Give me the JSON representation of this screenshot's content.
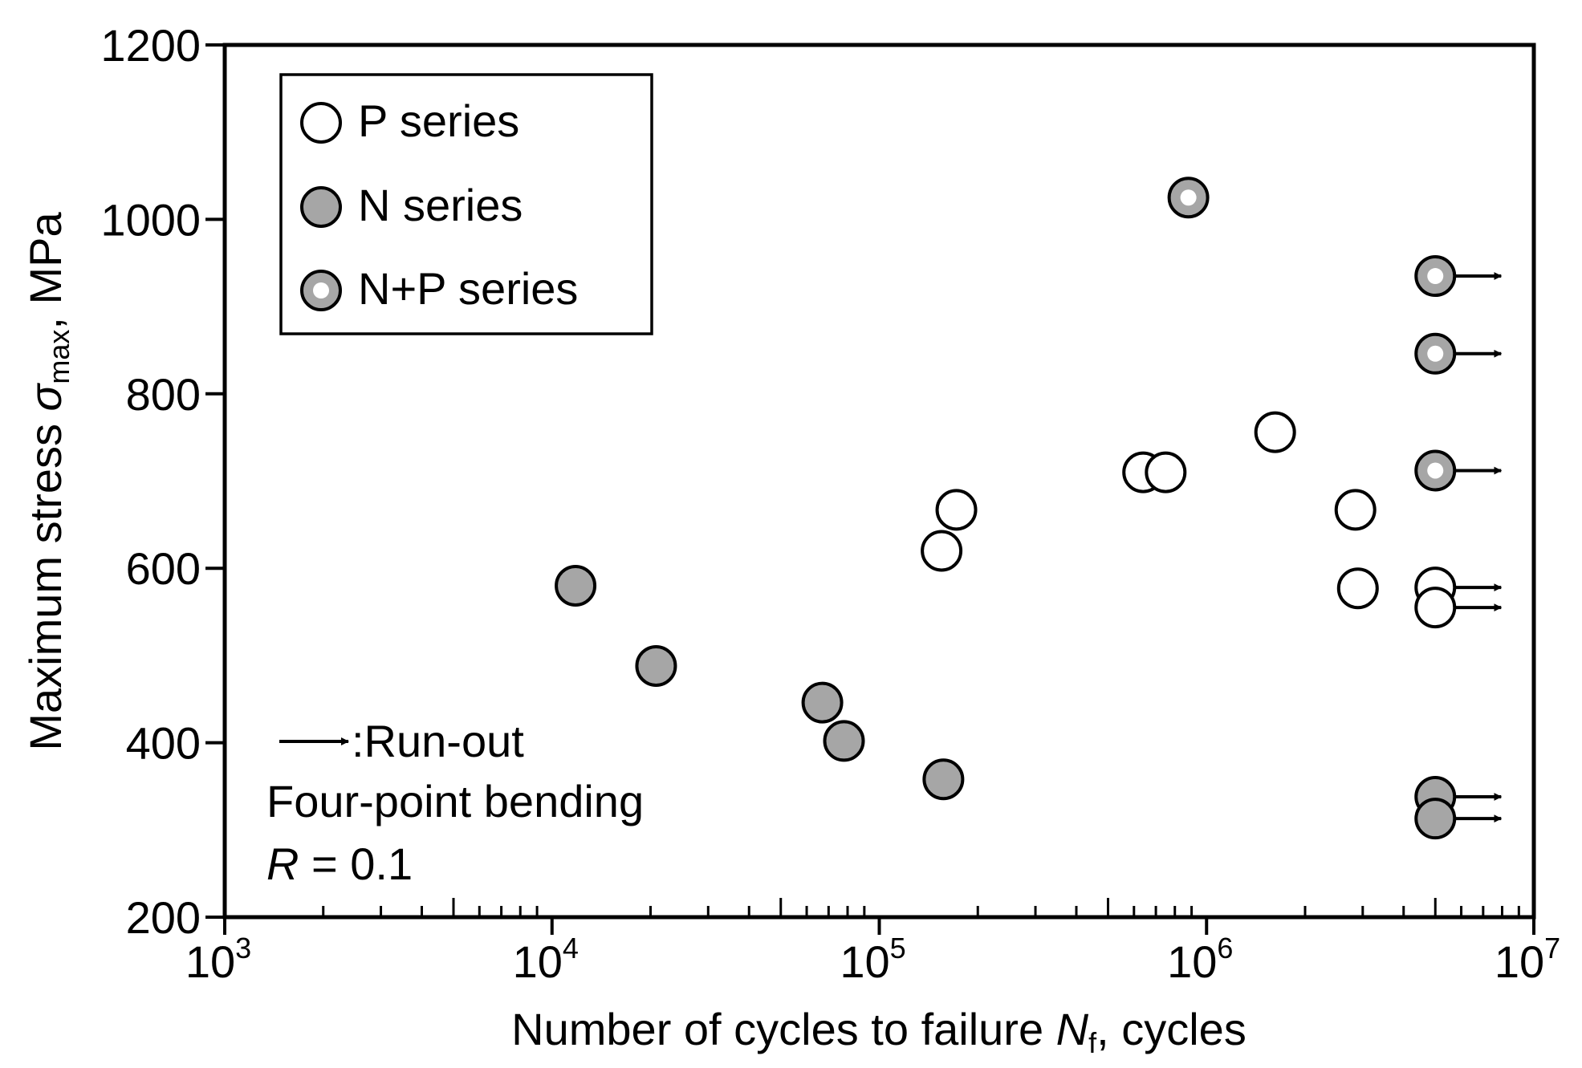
{
  "chart_data": {
    "type": "scatter",
    "xscale": "log",
    "xlim": [
      1000,
      10000000
    ],
    "ylim": [
      200,
      1200
    ],
    "xlabel": "Number of cycles to failure N_f, cycles",
    "xlabel_parts": {
      "pre": "Number of cycles to failure ",
      "var": "N",
      "sub": "f",
      "post": ", cycles"
    },
    "ylabel": "Maximum stress σ_max, MPa",
    "ylabel_parts": {
      "pre": "Maximum stress ",
      "var": "σ",
      "sub": "max",
      "post": ", MPa"
    },
    "x_ticks": [
      {
        "value": 1000,
        "base": "10",
        "exp": "3"
      },
      {
        "value": 10000,
        "base": "10",
        "exp": "4"
      },
      {
        "value": 100000,
        "base": "10",
        "exp": "5"
      },
      {
        "value": 1000000,
        "base": "10",
        "exp": "6"
      },
      {
        "value": 10000000,
        "base": "10",
        "exp": "7"
      }
    ],
    "y_ticks": [
      {
        "value": 200,
        "label": "200"
      },
      {
        "value": 400,
        "label": "400"
      },
      {
        "value": 600,
        "label": "600"
      },
      {
        "value": 800,
        "label": "800"
      },
      {
        "value": 1000,
        "label": "1000"
      },
      {
        "value": 1200,
        "label": "1200"
      }
    ],
    "grid": false,
    "legend_position": "top-left",
    "series": [
      {
        "name": "P series",
        "marker": "open",
        "points": [
          {
            "x": 155000,
            "y": 620
          },
          {
            "x": 172000,
            "y": 667
          },
          {
            "x": 640000,
            "y": 710
          },
          {
            "x": 750000,
            "y": 710
          },
          {
            "x": 1620000,
            "y": 756
          },
          {
            "x": 2850000,
            "y": 667
          },
          {
            "x": 2900000,
            "y": 577
          },
          {
            "x": 5000000,
            "y": 578,
            "runout": true
          },
          {
            "x": 5000000,
            "y": 555,
            "runout": true
          }
        ]
      },
      {
        "name": "N series",
        "marker": "filled",
        "points": [
          {
            "x": 11800,
            "y": 580
          },
          {
            "x": 20800,
            "y": 488
          },
          {
            "x": 67000,
            "y": 446
          },
          {
            "x": 78000,
            "y": 402
          },
          {
            "x": 157000,
            "y": 358
          },
          {
            "x": 5000000,
            "y": 338,
            "runout": true
          },
          {
            "x": 5000000,
            "y": 313,
            "runout": true
          }
        ]
      },
      {
        "name": "N+P series",
        "marker": "ringed",
        "points": [
          {
            "x": 880000,
            "y": 1025
          },
          {
            "x": 5000000,
            "y": 935,
            "runout": true
          },
          {
            "x": 5000000,
            "y": 846,
            "runout": true
          },
          {
            "x": 5000000,
            "y": 712,
            "runout": true
          }
        ]
      }
    ],
    "annotations": {
      "runout_label": ":Run-out",
      "test_label": "Four-point bending",
      "ratio_var": "R",
      "ratio_text": " = 0.1"
    },
    "colors": {
      "filled": "#a6a6a6",
      "open": "#ffffff",
      "ring_center": "#ffffff",
      "stroke": "#000000"
    }
  }
}
